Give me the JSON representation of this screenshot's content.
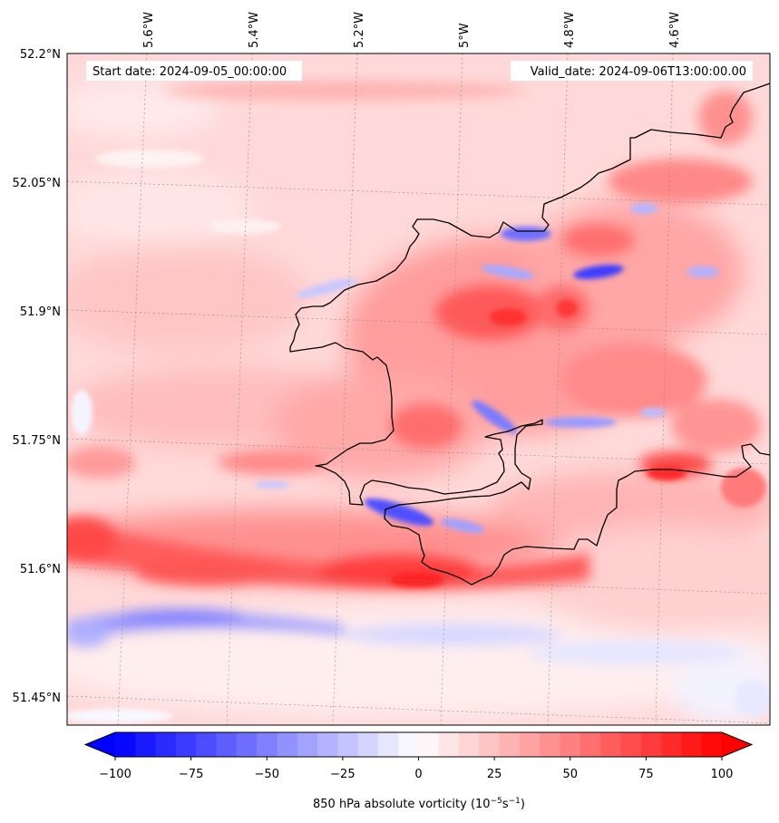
{
  "map": {
    "start_label": "Start date: 2024-09-05_00:00:00",
    "valid_label": "Valid_date: 2024-09-06T13:00:00.00",
    "lon_labels": [
      "5.6°W",
      "5.4°W",
      "5.2°W",
      "5°W",
      "4.8°W",
      "4.6°W"
    ],
    "lat_labels": [
      "52.2°N",
      "52.05°N",
      "51.9°N",
      "51.75°N",
      "51.6°N",
      "51.45°N"
    ],
    "field": "850 hPa absolute vorticity"
  },
  "colorbar": {
    "ticks": [
      "−100",
      "−75",
      "−50",
      "−25",
      "0",
      "25",
      "50",
      "75",
      "100"
    ],
    "tick_values": [
      -100,
      -75,
      -50,
      -25,
      0,
      25,
      50,
      75,
      100
    ],
    "min": -100,
    "max": 100,
    "levels": 30,
    "label_prefix": "850 hPa absolute vorticity (10",
    "label_exp1": "−5",
    "label_mid": "s",
    "label_exp2": "−1",
    "label_suffix": ")",
    "low_color": "#0000ff",
    "mid_color": "#ffffff",
    "high_color": "#ff0000"
  }
}
